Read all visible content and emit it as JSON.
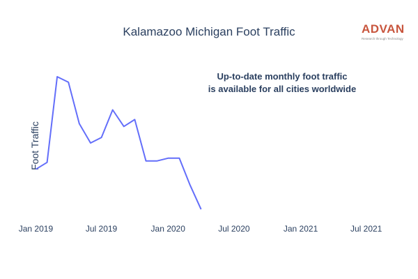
{
  "title": "Kalamazoo Michigan Foot Traffic",
  "logo": {
    "word": "ADVAN",
    "tagline": "Research through Technology",
    "color": "#c8553d"
  },
  "annotation": [
    "Up-to-date monthly foot traffic",
    "is available for all cities worldwide"
  ],
  "line_color": "#636efa",
  "chart_data": {
    "type": "line",
    "title": "Kalamazoo Michigan Foot Traffic",
    "xlabel": "",
    "ylabel": "Foot Traffic",
    "x_ticks": [
      "Jan 2019",
      "Jul 2019",
      "Jan 2020",
      "Jul 2020",
      "Jan 2021",
      "Jul 2021"
    ],
    "x_range": [
      "2018-12-10",
      "2021-09-05"
    ],
    "y_range": [
      0,
      100
    ],
    "grid": false,
    "series": [
      {
        "x": [
          "2019-01-01",
          "2019-02-01",
          "2019-03-01",
          "2019-04-01",
          "2019-05-01",
          "2019-06-01",
          "2019-07-01",
          "2019-08-01",
          "2019-09-01",
          "2019-10-01",
          "2019-11-01",
          "2019-12-01",
          "2020-01-01",
          "2020-02-01",
          "2020-03-01",
          "2020-04-01"
        ],
        "values": [
          33,
          38,
          100,
          96,
          66,
          52,
          56,
          76,
          64,
          69,
          39,
          39,
          41,
          41,
          22,
          4
        ]
      }
    ]
  }
}
